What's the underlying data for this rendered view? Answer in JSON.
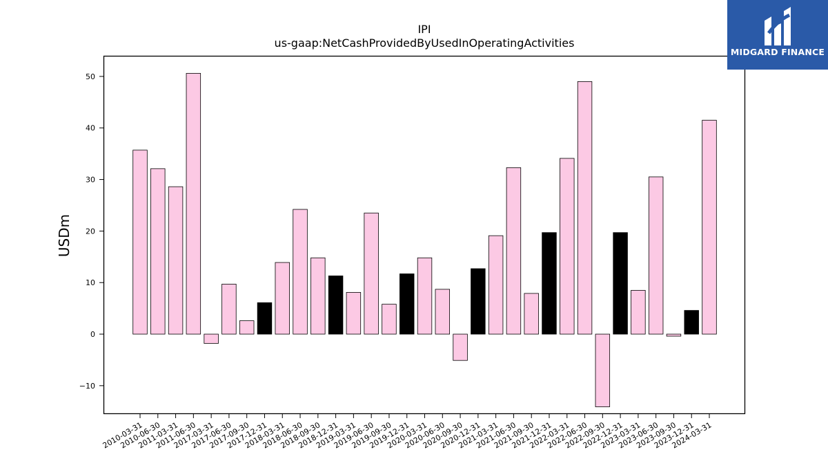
{
  "chart_data": {
    "type": "bar",
    "title": "IPI",
    "subtitle": "us-gaap:NetCashProvidedByUsedInOperatingActivities",
    "xlabel": "",
    "ylabel": "USDm",
    "ylim": [
      -15.5,
      54
    ],
    "yticks": [
      -10,
      0,
      10,
      20,
      30,
      40,
      50
    ],
    "ytick_labels": [
      "−10",
      "0",
      "10",
      "20",
      "30",
      "40",
      "50"
    ],
    "grid": false,
    "colors": {
      "default": "#fcc9e4",
      "highlight": "#000000",
      "edge": "#000000"
    },
    "categories": [
      "2010-03-31",
      "2010-06-30",
      "2011-03-31",
      "2011-06-30",
      "2017-03-31",
      "2017-06-30",
      "2017-09-30",
      "2017-12-31",
      "2018-03-31",
      "2018-06-30",
      "2018-09-30",
      "2018-12-31",
      "2019-03-31",
      "2019-06-30",
      "2019-09-30",
      "2019-12-31",
      "2020-03-31",
      "2020-06-30",
      "2020-09-30",
      "2020-12-31",
      "2021-03-31",
      "2021-06-30",
      "2021-09-30",
      "2021-12-31",
      "2022-03-31",
      "2022-06-30",
      "2022-09-30",
      "2022-12-31",
      "2023-03-31",
      "2023-06-30",
      "2023-09-30",
      "2023-12-31",
      "2024-03-31"
    ],
    "values": [
      35.7,
      32.1,
      28.6,
      50.6,
      -1.8,
      9.7,
      2.6,
      6.1,
      13.9,
      24.2,
      14.8,
      11.3,
      8.1,
      23.5,
      5.8,
      11.7,
      14.8,
      8.7,
      -5.1,
      12.7,
      19.1,
      32.3,
      7.9,
      19.7,
      34.1,
      49.0,
      -14.1,
      19.7,
      8.5,
      30.5,
      -0.4,
      4.6,
      41.5
    ],
    "highlight": [
      false,
      false,
      false,
      false,
      false,
      false,
      false,
      true,
      false,
      false,
      false,
      true,
      false,
      false,
      false,
      true,
      false,
      false,
      false,
      true,
      false,
      false,
      false,
      true,
      false,
      false,
      false,
      true,
      false,
      false,
      false,
      true,
      false
    ]
  },
  "logo": {
    "text": "MIDGARD FINANCE"
  }
}
